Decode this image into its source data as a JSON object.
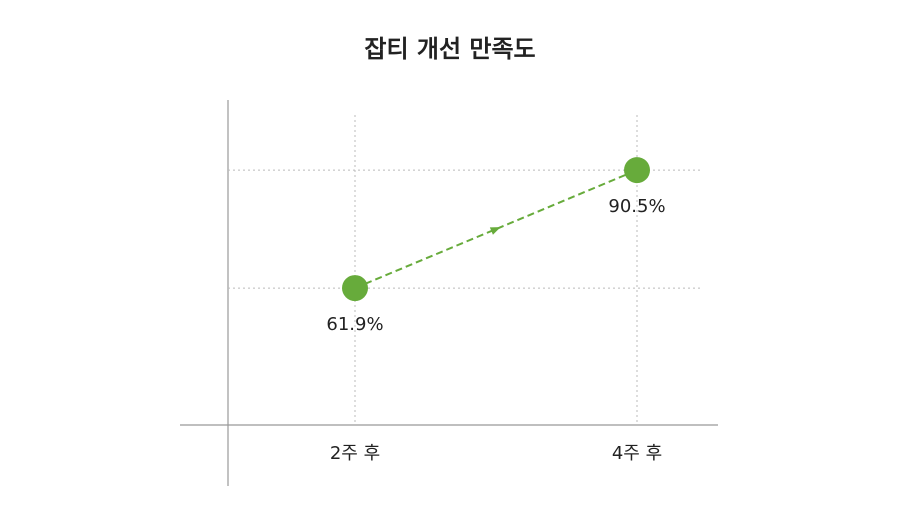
{
  "chart_data": {
    "type": "line",
    "title": "잡티 개선 만족도",
    "categories": [
      "2주 후",
      "4주 후"
    ],
    "values": [
      61.9,
      90.5
    ],
    "value_labels": [
      "61.9%",
      "90.5%"
    ],
    "color": "#67ab3b",
    "ylim": [
      28.7,
      107.5
    ],
    "grid": true
  }
}
